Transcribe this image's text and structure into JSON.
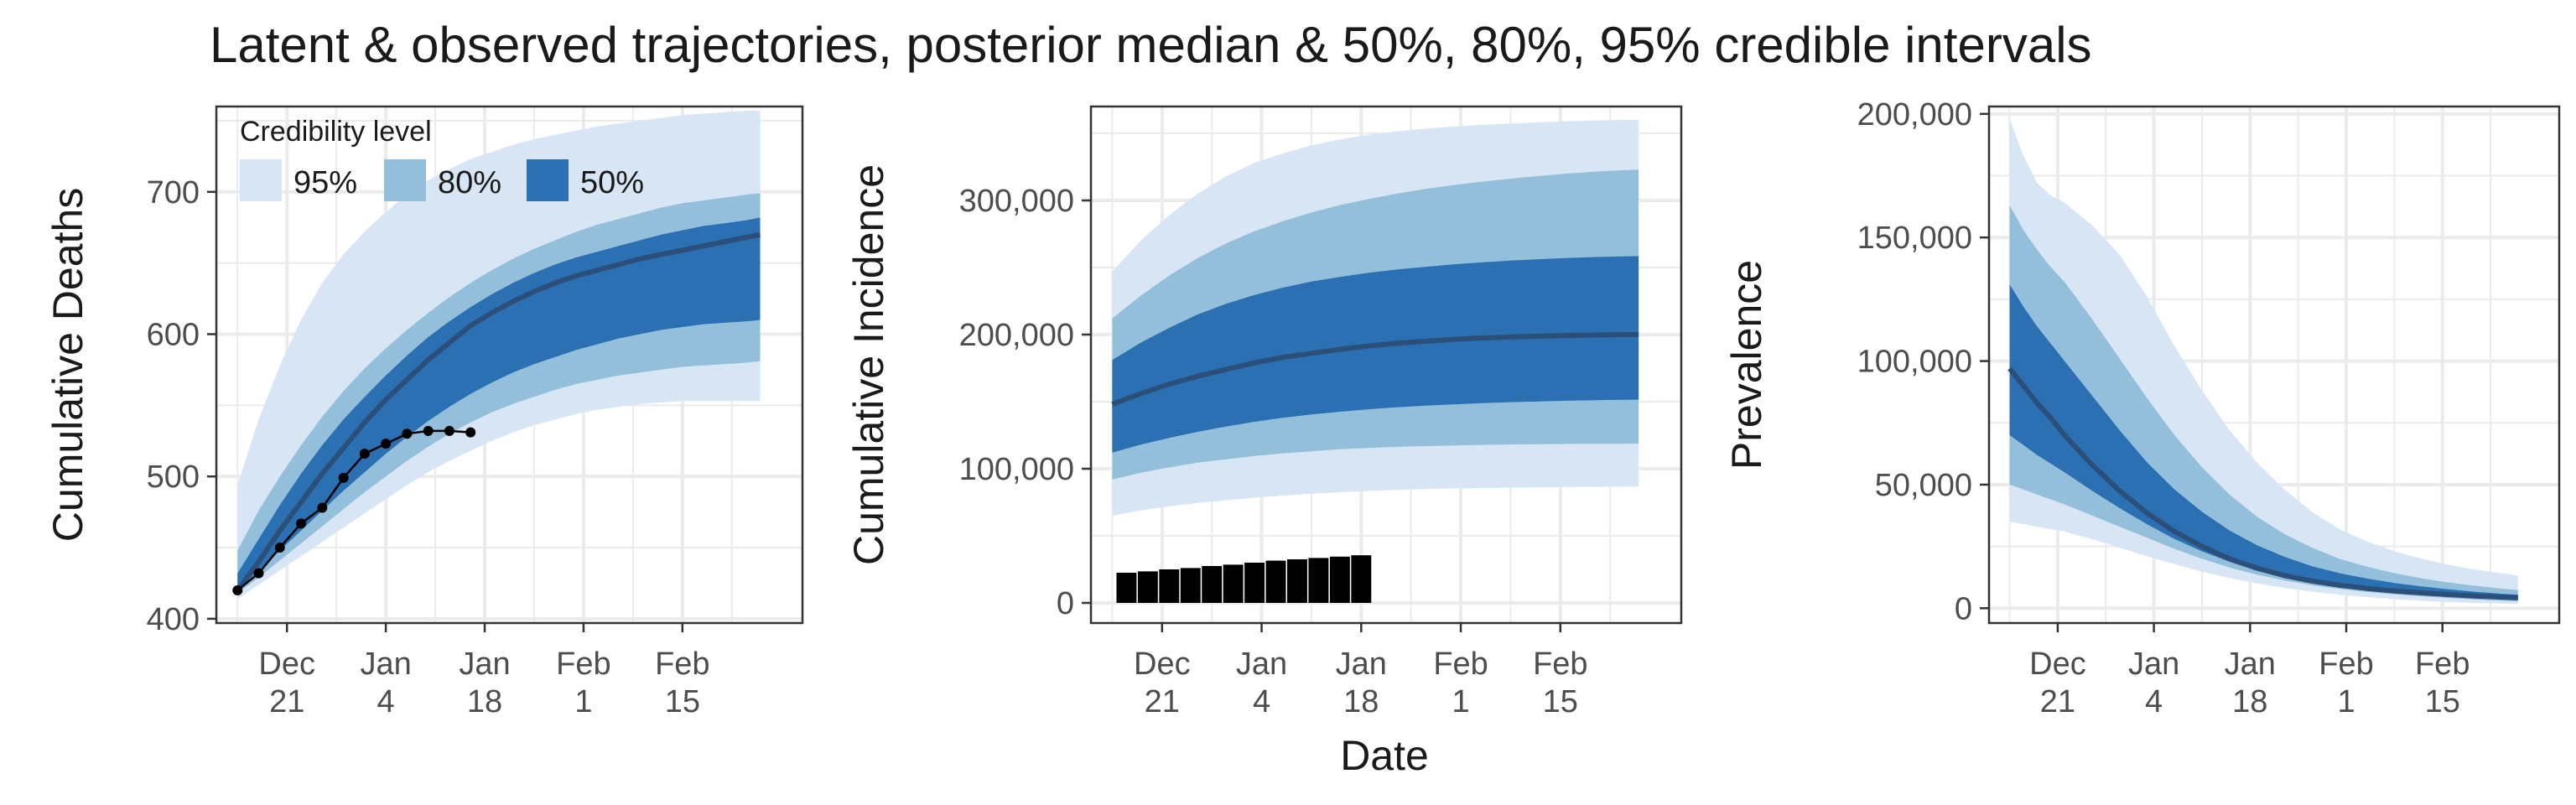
{
  "title": "Latent & observed trajectories, posterior median & 50%, 80%, 95% credible intervals",
  "xlabel": "Date",
  "colors": {
    "band95": "#d7e5f4",
    "band80": "#93bfdb",
    "band50": "#2a70b3",
    "median": "#2b4f78",
    "observed": "#000000",
    "grid": "#ebebeb",
    "frame": "#333333"
  },
  "legend": {
    "title": "Credibility level",
    "items": [
      {
        "label": "95%",
        "color": "#d7e5f4"
      },
      {
        "label": "80%",
        "color": "#93bfdb"
      },
      {
        "label": "50%",
        "color": "#2a70b3"
      }
    ]
  },
  "chart_data": [
    {
      "type": "area",
      "ylabel": "Cumulative Deaths",
      "xlim": [
        -3,
        80
      ],
      "ylim": [
        397,
        760
      ],
      "x_ticks": [
        {
          "x": 7,
          "line1": "Dec",
          "line2": "21"
        },
        {
          "x": 21,
          "line1": "Jan",
          "line2": "4"
        },
        {
          "x": 35,
          "line1": "Jan",
          "line2": "18"
        },
        {
          "x": 49,
          "line1": "Feb",
          "line2": "1"
        },
        {
          "x": 63,
          "line1": "Feb",
          "line2": "15"
        }
      ],
      "y_ticks": [
        {
          "v": 400,
          "label": "400"
        },
        {
          "v": 500,
          "label": "500"
        },
        {
          "v": 600,
          "label": "600"
        },
        {
          "v": 700,
          "label": "700"
        }
      ],
      "x": [
        0,
        3,
        6,
        9,
        12,
        15,
        18,
        21,
        24,
        27,
        30,
        33,
        36,
        39,
        42,
        45,
        48,
        51,
        54,
        57,
        60,
        63,
        66,
        69,
        72,
        74
      ],
      "median": [
        420,
        440,
        462,
        482,
        502,
        520,
        538,
        554,
        568,
        582,
        594,
        606,
        615,
        623,
        630,
        636,
        641,
        645,
        649,
        653,
        656,
        659,
        662,
        665,
        668,
        670
      ],
      "lo95": [
        414,
        424,
        434,
        444,
        454,
        464,
        474,
        484,
        494,
        503,
        511,
        518,
        525,
        531,
        536,
        540,
        544,
        547,
        549,
        551,
        552,
        553,
        553,
        553,
        553,
        553
      ],
      "hi95": [
        494,
        540,
        578,
        610,
        636,
        656,
        672,
        686,
        698,
        708,
        716,
        723,
        728,
        733,
        737,
        740,
        743,
        746,
        748,
        750,
        752,
        754,
        755,
        756,
        757,
        757
      ],
      "lo80": [
        418,
        429,
        441,
        453,
        465,
        477,
        489,
        500,
        511,
        521,
        530,
        538,
        545,
        551,
        556,
        561,
        565,
        568,
        571,
        573,
        575,
        577,
        578,
        579,
        580,
        581
      ],
      "hi80": [
        448,
        476,
        500,
        522,
        542,
        560,
        576,
        590,
        603,
        615,
        626,
        636,
        645,
        653,
        660,
        666,
        672,
        677,
        681,
        685,
        689,
        692,
        694,
        696,
        698,
        699
      ],
      "lo50": [
        420,
        434,
        448,
        462,
        476,
        490,
        503,
        516,
        528,
        539,
        549,
        558,
        566,
        573,
        579,
        584,
        589,
        593,
        597,
        600,
        603,
        605,
        607,
        608,
        609,
        610
      ],
      "hi50": [
        432,
        456,
        480,
        502,
        522,
        540,
        556,
        571,
        585,
        598,
        609,
        619,
        628,
        636,
        643,
        649,
        654,
        658,
        662,
        666,
        670,
        673,
        676,
        678,
        680,
        682
      ],
      "observed": {
        "style": "points_line",
        "x": [
          0,
          3,
          6,
          9,
          12,
          15,
          18,
          21,
          24,
          27,
          30,
          33
        ],
        "y": [
          420,
          432,
          450,
          467,
          478,
          499,
          516,
          523,
          530,
          532,
          532,
          531
        ]
      },
      "legend": "top-left"
    },
    {
      "type": "area",
      "ylabel": "Cumulative Incidence",
      "xlim": [
        -3,
        80
      ],
      "ylim": [
        -15000,
        370000
      ],
      "x_ticks": [
        {
          "x": 7,
          "line1": "Dec",
          "line2": "21"
        },
        {
          "x": 21,
          "line1": "Jan",
          "line2": "4"
        },
        {
          "x": 35,
          "line1": "Jan",
          "line2": "18"
        },
        {
          "x": 49,
          "line1": "Feb",
          "line2": "1"
        },
        {
          "x": 63,
          "line1": "Feb",
          "line2": "15"
        }
      ],
      "y_ticks": [
        {
          "v": 0,
          "label": "0"
        },
        {
          "v": 100000,
          "label": "100,000"
        },
        {
          "v": 200000,
          "label": "200,000"
        },
        {
          "v": 300000,
          "label": "300,000"
        }
      ],
      "x": [
        0,
        4,
        8,
        12,
        16,
        20,
        24,
        28,
        32,
        36,
        40,
        44,
        48,
        52,
        56,
        60,
        64,
        68,
        72,
        74
      ],
      "median": [
        148000,
        156000,
        163000,
        169000,
        174000,
        179000,
        183000,
        186000,
        189000,
        191500,
        193500,
        195000,
        196500,
        197500,
        198200,
        198800,
        199300,
        199700,
        200000,
        200000
      ],
      "lo95": [
        65000,
        69000,
        72000,
        74500,
        76500,
        78500,
        80000,
        81500,
        82500,
        83500,
        84200,
        84800,
        85300,
        85700,
        86000,
        86200,
        86400,
        86500,
        86600,
        86600
      ],
      "hi95": [
        247000,
        270000,
        289000,
        305000,
        318000,
        328000,
        335000,
        341000,
        345500,
        349000,
        351500,
        353500,
        355000,
        356300,
        357300,
        358200,
        359000,
        359600,
        360000,
        360000
      ],
      "lo80": [
        92000,
        97000,
        101000,
        104500,
        107000,
        109500,
        111500,
        113000,
        114500,
        115500,
        116300,
        116900,
        117400,
        117800,
        118100,
        118300,
        118500,
        118600,
        118700,
        118700
      ],
      "hi80": [
        212000,
        229000,
        244000,
        257000,
        268000,
        277000,
        284500,
        291000,
        296500,
        301000,
        305000,
        308500,
        311500,
        314000,
        316200,
        318200,
        320000,
        321500,
        322500,
        323000
      ],
      "lo50": [
        112000,
        118000,
        123000,
        127500,
        131500,
        135000,
        138000,
        140500,
        142500,
        144300,
        145800,
        147000,
        148000,
        148900,
        149600,
        150200,
        150700,
        151100,
        151400,
        151500
      ],
      "hi50": [
        181000,
        194000,
        205000,
        215000,
        223000,
        229500,
        235000,
        239500,
        243000,
        246000,
        248500,
        250500,
        252300,
        253800,
        255100,
        256200,
        257100,
        257800,
        258300,
        258500
      ],
      "observed": {
        "style": "bars",
        "x": [
          2,
          5,
          8,
          11,
          14,
          17,
          20,
          23,
          26,
          29,
          32,
          35
        ],
        "y": [
          22500,
          23500,
          25000,
          26000,
          27500,
          28500,
          30000,
          31500,
          32500,
          33500,
          34500,
          35500
        ]
      }
    },
    {
      "type": "area",
      "ylabel": "Prevalence",
      "xlim": [
        -3,
        80
      ],
      "ylim": [
        -6000,
        203000
      ],
      "x_ticks": [
        {
          "x": 7,
          "line1": "Dec",
          "line2": "21"
        },
        {
          "x": 21,
          "line1": "Jan",
          "line2": "4"
        },
        {
          "x": 35,
          "line1": "Jan",
          "line2": "18"
        },
        {
          "x": 49,
          "line1": "Feb",
          "line2": "1"
        },
        {
          "x": 63,
          "line1": "Feb",
          "line2": "15"
        }
      ],
      "y_ticks": [
        {
          "v": 0,
          "label": "0"
        },
        {
          "v": 50000,
          "label": "50,000"
        },
        {
          "v": 100000,
          "label": "100,000"
        },
        {
          "v": 150000,
          "label": "150,000"
        },
        {
          "v": 200000,
          "label": "200,000"
        }
      ],
      "x": [
        0,
        2,
        4,
        6,
        8,
        12,
        16,
        20,
        24,
        28,
        32,
        36,
        40,
        44,
        48,
        52,
        56,
        60,
        64,
        68,
        72,
        74
      ],
      "median": [
        97000,
        90000,
        83000,
        77000,
        70000,
        58000,
        47500,
        38500,
        31000,
        25000,
        20000,
        16200,
        13200,
        11000,
        9300,
        8000,
        7000,
        6200,
        5500,
        4900,
        4400,
        4200
      ],
      "lo95": [
        35000,
        34000,
        33000,
        32000,
        31000,
        28000,
        24500,
        21000,
        17800,
        14800,
        12200,
        10000,
        8200,
        6700,
        5500,
        4500,
        3700,
        3000,
        2500,
        2100,
        1800,
        1700
      ],
      "hi95": [
        198000,
        183000,
        172000,
        167000,
        164000,
        155000,
        143000,
        126000,
        106000,
        88000,
        72000,
        59000,
        48000,
        39000,
        32000,
        27000,
        23000,
        20000,
        17500,
        15500,
        14000,
        13300
      ],
      "lo80": [
        50000,
        48000,
        46000,
        44000,
        42000,
        37500,
        33000,
        28500,
        24000,
        20000,
        16500,
        13600,
        11200,
        9300,
        7800,
        6600,
        5600,
        4800,
        4100,
        3500,
        3000,
        2800
      ],
      "hi80": [
        163000,
        153000,
        145000,
        138000,
        132000,
        117000,
        101000,
        85000,
        70000,
        57000,
        46000,
        37000,
        30000,
        24500,
        20000,
        16800,
        14200,
        12100,
        10400,
        9000,
        7800,
        7300
      ],
      "lo50": [
        70000,
        66000,
        62000,
        58500,
        55000,
        47500,
        40500,
        34000,
        28000,
        23000,
        18800,
        15300,
        12500,
        10400,
        8700,
        7400,
        6300,
        5400,
        4700,
        4100,
        3600,
        3400
      ],
      "hi50": [
        131000,
        122000,
        114000,
        107000,
        100000,
        86000,
        72000,
        59000,
        48000,
        39000,
        31500,
        25500,
        20800,
        17000,
        14200,
        12000,
        10200,
        8800,
        7600,
        6600,
        5800,
        5500
      ]
    }
  ]
}
